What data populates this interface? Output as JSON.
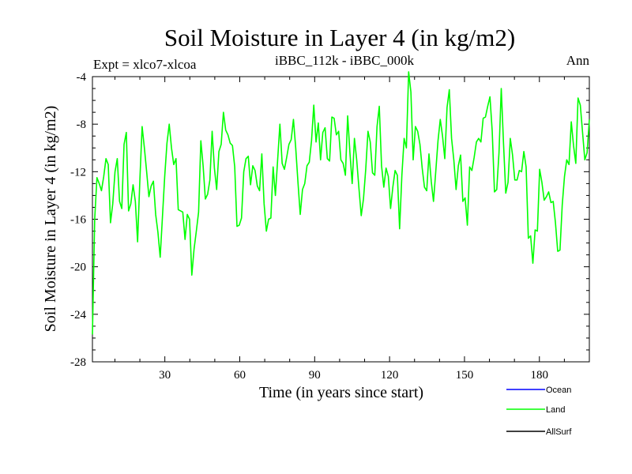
{
  "chart_data": {
    "type": "line",
    "title": "Soil Moisture in Layer 4 (in kg/m2)",
    "subtitle_left": "Expt = xlco7-xlcoa",
    "subtitle_center": "iBBC_112k - iBBC_000k",
    "subtitle_right": "Ann",
    "xlabel": "Time (in years since start)",
    "ylabel": "Soil Moisture in Layer 4 (in kg/m2)",
    "xlim": [
      1,
      200
    ],
    "ylim": [
      -28,
      -4
    ],
    "xticks": [
      30,
      60,
      90,
      120,
      150,
      180
    ],
    "yticks": [
      -4,
      -8,
      -12,
      -16,
      -20,
      -24,
      -28
    ],
    "grid": false,
    "legend_position": "bottom-right",
    "legend": [
      {
        "name": "Ocean",
        "color": "#0000ff"
      },
      {
        "name": "Land",
        "color": "#00ff00"
      },
      {
        "name": "AllSurf",
        "color": "#000000"
      }
    ],
    "series": [
      {
        "name": "Land",
        "color": "#00ff00",
        "values": [
          -25.7,
          -16.0,
          -12.5,
          -13.0,
          -13.6,
          -12.4,
          -10.9,
          -11.4,
          -16.3,
          -14.7,
          -12.0,
          -10.9,
          -14.5,
          -15.1,
          -9.7,
          -8.7,
          -15.3,
          -14.7,
          -13.1,
          -14.5,
          -17.9,
          -12.7,
          -8.2,
          -10.0,
          -12.0,
          -14.1,
          -13.2,
          -12.8,
          -15.6,
          -17.1,
          -19.2,
          -15.8,
          -12.4,
          -9.6,
          -8.0,
          -10.0,
          -11.4,
          -10.9,
          -15.2,
          -15.3,
          -15.4,
          -17.7,
          -15.6,
          -16.0,
          -20.7,
          -18.5,
          -17.0,
          -15.4,
          -9.4,
          -11.5,
          -14.3,
          -13.9,
          -12.7,
          -8.6,
          -11.7,
          -13.5,
          -10.3,
          -9.7,
          -7.0,
          -8.5,
          -8.9,
          -9.6,
          -9.8,
          -11.6,
          -16.6,
          -16.5,
          -15.9,
          -12.0,
          -10.9,
          -10.7,
          -13.1,
          -11.5,
          -11.9,
          -13.2,
          -13.6,
          -10.5,
          -14.7,
          -17.0,
          -16.0,
          -15.9,
          -11.6,
          -14.0,
          -11.0,
          -8.0,
          -11.3,
          -11.8,
          -10.8,
          -9.7,
          -9.3,
          -7.6,
          -10.0,
          -12.9,
          -15.6,
          -13.5,
          -13.0,
          -11.5,
          -11.2,
          -9.4,
          -6.4,
          -9.5,
          -7.9,
          -11.0,
          -8.7,
          -8.3,
          -10.9,
          -11.1,
          -7.4,
          -7.5,
          -8.9,
          -8.6,
          -11.0,
          -11.3,
          -12.3,
          -7.3,
          -10.4,
          -13.0,
          -9.2,
          -11.0,
          -13.4,
          -15.7,
          -14.3,
          -11.8,
          -8.6,
          -9.5,
          -12.1,
          -12.3,
          -8.2,
          -6.5,
          -11.5,
          -13.3,
          -11.7,
          -12.4,
          -15.1,
          -13.3,
          -11.9,
          -12.3,
          -16.8,
          -12.3,
          -9.2,
          -10.0,
          -3.6,
          -5.3,
          -11.0,
          -8.2,
          -8.6,
          -9.7,
          -11.7,
          -13.3,
          -13.6,
          -10.5,
          -12.8,
          -14.5,
          -12.0,
          -9.4,
          -7.6,
          -9.0,
          -10.9,
          -6.6,
          -5.1,
          -9.2,
          -11.0,
          -13.5,
          -11.5,
          -10.6,
          -14.5,
          -14.2,
          -16.5,
          -11.6,
          -11.9,
          -10.8,
          -9.5,
          -9.2,
          -9.5,
          -7.5,
          -7.4,
          -6.5,
          -5.7,
          -8.6,
          -13.7,
          -13.5,
          -10.4,
          -5.0,
          -9.6,
          -13.8,
          -12.9,
          -9.2,
          -10.6,
          -12.7,
          -12.7,
          -11.9,
          -12.0,
          -10.3,
          -11.6,
          -17.6,
          -17.4,
          -19.7,
          -16.9,
          -17.0,
          -11.8,
          -12.9,
          -14.4,
          -14.1,
          -13.7,
          -14.6,
          -14.5,
          -16.3,
          -18.7,
          -18.6,
          -14.8,
          -12.4,
          -11.0,
          -11.4,
          -7.8,
          -9.8,
          -11.3,
          -5.8,
          -6.4,
          -8.7,
          -11.0,
          -10.4,
          -7.6
        ]
      }
    ]
  }
}
